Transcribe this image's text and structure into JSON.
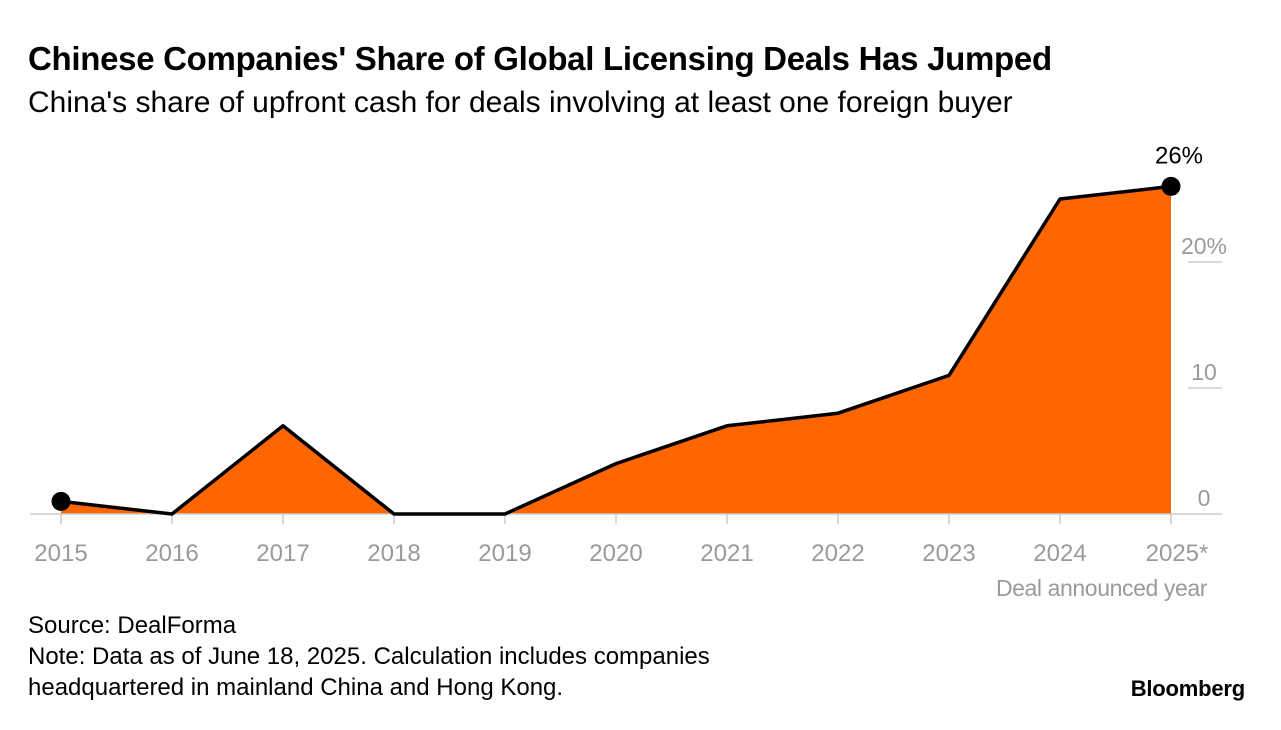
{
  "header": {
    "title": "Chinese Companies' Share of Global Licensing Deals Has Jumped",
    "subtitle": "China's share of upfront cash for deals involving at least one foreign buyer"
  },
  "chart_data": {
    "type": "area",
    "title": "Chinese Companies' Share of Global Licensing Deals Has Jumped",
    "subtitle": "China's share of upfront cash for deals involving at least one foreign buyer",
    "categories": [
      "2015",
      "2016",
      "2017",
      "2018",
      "2019",
      "2020",
      "2021",
      "2022",
      "2023",
      "2024",
      "2025*"
    ],
    "series": [
      {
        "values": [
          1,
          0,
          7,
          0,
          0,
          4,
          7,
          8,
          11,
          25,
          26
        ],
        "color": "#ff6600",
        "line_color": "#000000"
      }
    ],
    "y_ticks": [
      {
        "value": 0,
        "label": "0"
      },
      {
        "value": 10,
        "label": "10"
      },
      {
        "value": 20,
        "label": "20%"
      }
    ],
    "ylim": [
      0,
      27
    ],
    "xlabel": "Deal announced year",
    "ylabel": "",
    "y_axis_side": "right",
    "grid": false,
    "legend": "none",
    "end_label": "26%",
    "endpoint_markers": [
      "2015",
      "2025*"
    ]
  },
  "footer": {
    "source": "Source: DealForma",
    "note_line1": "Note: Data as of June 18, 2025. Calculation includes companies",
    "note_line2": "headquartered in mainland China and Hong Kong."
  },
  "brand": "Bloomberg",
  "colors": {
    "area": "#ff6600",
    "line": "#000000",
    "axis_text": "#9a9a9a",
    "axis_line": "#cccccc"
  }
}
